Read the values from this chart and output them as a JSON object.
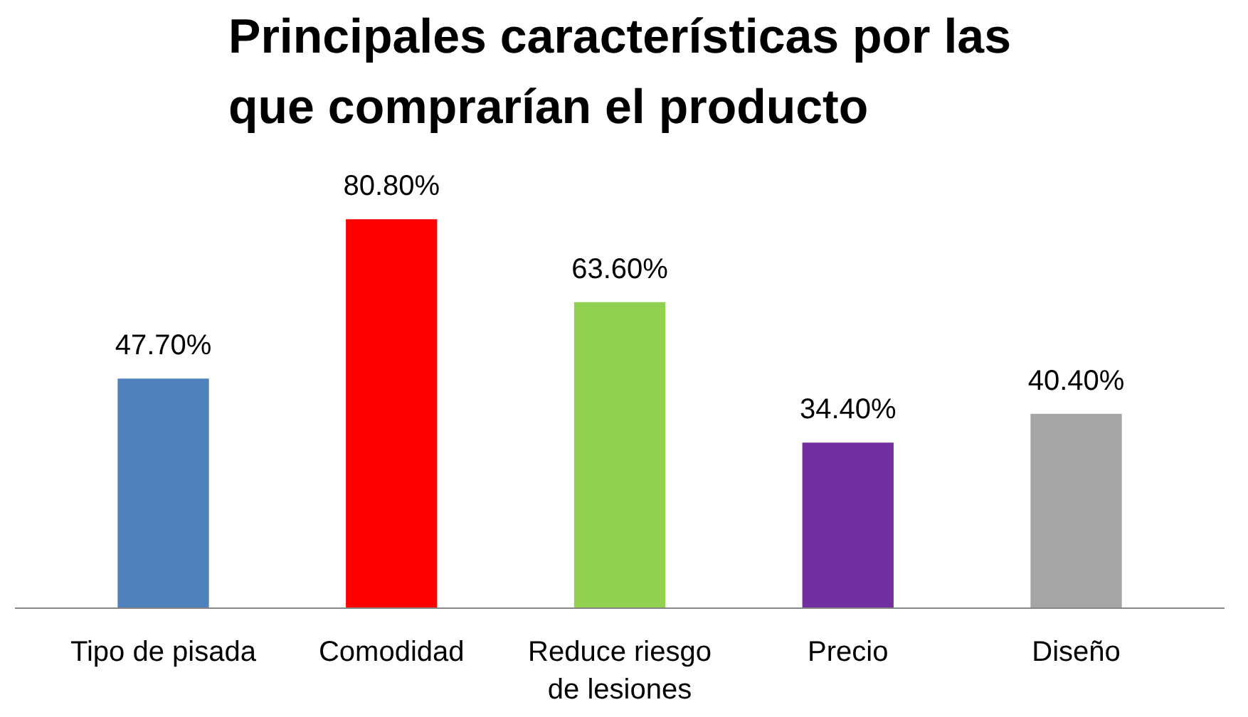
{
  "chart_data": {
    "type": "bar",
    "title": "Principales características por las que comprarían el producto",
    "categories": [
      "Tipo de pisada",
      "Comodidad",
      "Reduce riesgo de lesiones",
      "Precio",
      "Diseño"
    ],
    "values": [
      47.7,
      80.8,
      63.6,
      34.4,
      40.4
    ],
    "colors": [
      "#4f81bd",
      "#ff0000",
      "#92d050",
      "#7030a0",
      "#a5a5a5"
    ],
    "value_labels": [
      "47.70%",
      "80.80%",
      "63.60%",
      "34.40%",
      "40.40%"
    ],
    "grid": false
  }
}
